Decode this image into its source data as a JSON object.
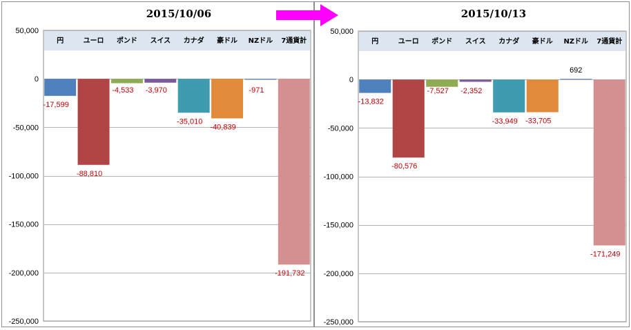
{
  "chart_data": [
    {
      "type": "bar",
      "title": "2015/10/06",
      "categories": [
        "円",
        "ユーロ",
        "ポンド",
        "スイス",
        "カナダ",
        "豪ドル",
        "NZドル",
        "7通貨計"
      ],
      "values": [
        -17599,
        -88810,
        -4533,
        -3970,
        -35010,
        -40839,
        -971,
        -191732
      ],
      "data_labels": [
        "-17,599",
        "-88,810",
        "-4,533",
        "-3,970",
        "-35,010",
        "-40,839",
        "-971",
        "-191,732"
      ],
      "ylim": [
        -250000,
        50000
      ],
      "yticks": [
        50000,
        0,
        -50000,
        -100000,
        -150000,
        -200000,
        -250000
      ],
      "ytick_labels": [
        "50,000",
        "0",
        "-50,000",
        "-100,000",
        "-150,000",
        "-200,000",
        "-250,000"
      ],
      "colors": [
        "#4f81bd",
        "#b04545",
        "#8fac55",
        "#7a5b9a",
        "#3f9cb0",
        "#e08a3c",
        "#5b88c0",
        "#d49090"
      ],
      "grid": true,
      "legend": "none"
    },
    {
      "type": "bar",
      "title": "2015/10/13",
      "categories": [
        "円",
        "ユーロ",
        "ポンド",
        "スイス",
        "カナダ",
        "豪ドル",
        "NZドル",
        "7通貨計"
      ],
      "values": [
        -13832,
        -80576,
        -7527,
        -2352,
        -33949,
        -33705,
        692,
        -171249
      ],
      "data_labels": [
        "-13,832",
        "-80,576",
        "-7,527",
        "-2,352",
        "-33,949",
        "-33,705",
        "692",
        "-171,249"
      ],
      "ylim": [
        -250000,
        50000
      ],
      "yticks": [
        50000,
        0,
        -50000,
        -100000,
        -150000,
        -200000,
        -250000
      ],
      "ytick_labels": [
        "50,000",
        "0",
        "-50,000",
        "-100,000",
        "-150,000",
        "-200,000",
        "-250,000"
      ],
      "colors": [
        "#4f81bd",
        "#b04545",
        "#8fac55",
        "#7a5b9a",
        "#3f9cb0",
        "#e08a3c",
        "#5b88c0",
        "#d49090"
      ],
      "grid": true,
      "legend": "none"
    }
  ],
  "colors": {
    "arrow": "#ff00ff",
    "negative_label": "#c00000",
    "positive_label": "#000000",
    "category_band": "#dce6f1",
    "gridline": "#b4b4b4"
  },
  "arrow_icon": "right-arrow-icon"
}
